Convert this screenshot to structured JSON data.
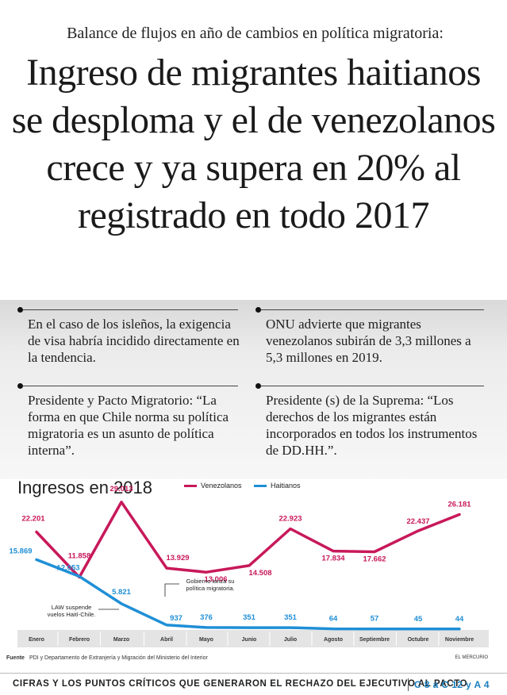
{
  "kicker": "Balance de flujos en año de cambios en política migratoria:",
  "headline": "Ingreso de migrantes haitianos se desploma y el de venezolanos crece y ya supera en 20% al registrado en todo 2017",
  "bullets": [
    "En el caso de los isleños, la exigencia de visa habría incidido directamente en la tendencia.",
    "ONU advierte que migrantes venezolanos subirán de 3,3 millones a 5,3 millones en 2019.",
    "Presidente y Pacto Migratorio: “La forma en que Chile norma su política migratoria es un asunto de política interna”.",
    "Presidente (s) de la Suprema: “Los derechos de los migrantes están incorporados en todos los instrumentos de DD.HH.”."
  ],
  "colors": {
    "venezolanos": "#c8185a",
    "haitianos": "#1f8fd6",
    "accent": "#1a7fc0"
  },
  "chart_data": {
    "type": "line",
    "title": "Ingresos en 2018",
    "categories": [
      "Enero",
      "Febrero",
      "Marzo",
      "Abril",
      "Mayo",
      "Junio",
      "Julio",
      "Agosto",
      "Septiembre",
      "Octubre",
      "Noviembre"
    ],
    "series": [
      {
        "name": "Venezolanos",
        "values": [
          22201,
          11858,
          29013,
          13929,
          13006,
          14508,
          22923,
          17834,
          17662,
          22437,
          26181
        ],
        "labels": [
          "22.201",
          "11.858",
          "29.013",
          "13.929",
          "13.006",
          "14.508",
          "22.923",
          "17.834",
          "17.662",
          "22.437",
          "26.181"
        ]
      },
      {
        "name": "Haitianos",
        "values": [
          15869,
          12053,
          5821,
          937,
          376,
          351,
          351,
          64,
          57,
          45,
          44
        ],
        "labels": [
          "15.869",
          "12.053",
          "5.821",
          "937",
          "376",
          "351",
          "351",
          "64",
          "57",
          "45",
          "44"
        ]
      }
    ],
    "annotations": [
      {
        "text": "LAW suspende vuelos Haití-Chile.",
        "month": "Marzo"
      },
      {
        "text": "Gobierno lanza su política migratoria.",
        "month": "Abril"
      }
    ],
    "legend": "top"
  },
  "source_label": "Fuente",
  "source_text": "PDI y Departamento de Extranjería y Migración del Ministerio del Interior",
  "brand": "EL MERCURIO",
  "footer": {
    "text": "CIFRAS Y LOS PUNTOS CRÍTICOS QUE GENERARON EL RECHAZO DEL EJECUTIVO AL PACTO",
    "ref": "C 8 a C 12 y A 4"
  }
}
